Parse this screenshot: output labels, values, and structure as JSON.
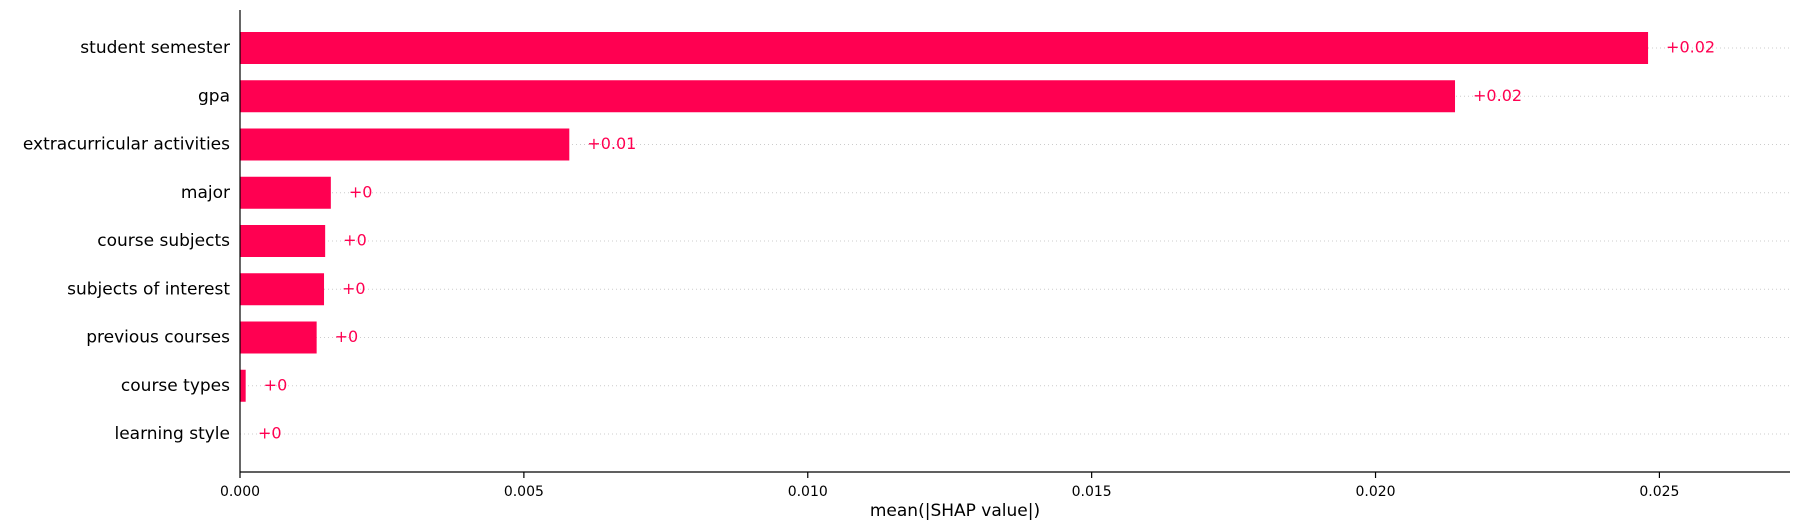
{
  "chart_data": {
    "type": "bar",
    "orientation": "horizontal",
    "categories": [
      "student semester",
      "gpa",
      "extracurricular activities",
      "major",
      "course subjects",
      "subjects of interest",
      "previous courses",
      "course types",
      "learning style"
    ],
    "values": [
      0.0248,
      0.0214,
      0.0058,
      0.0016,
      0.0015,
      0.00148,
      0.00135,
      0.0001,
      0.0
    ],
    "data_labels": [
      "+0.02",
      "+0.02",
      "+0.01",
      "+0",
      "+0",
      "+0",
      "+0",
      "+0",
      "+0"
    ],
    "xlabel": "mean(|SHAP value|)",
    "ylabel": "",
    "xlim": [
      0,
      0.0273
    ],
    "xticks": [
      0.0,
      0.005,
      0.01,
      0.015,
      0.02,
      0.025
    ],
    "xtick_labels": [
      "0.000",
      "0.005",
      "0.010",
      "0.015",
      "0.020",
      "0.025"
    ],
    "grid": "horizontal dotted lines per row",
    "legend": "none",
    "colors": {
      "bar": "#ff0051",
      "label": "#ff0051",
      "grid": "#cccccc",
      "axis": "#000000"
    }
  }
}
